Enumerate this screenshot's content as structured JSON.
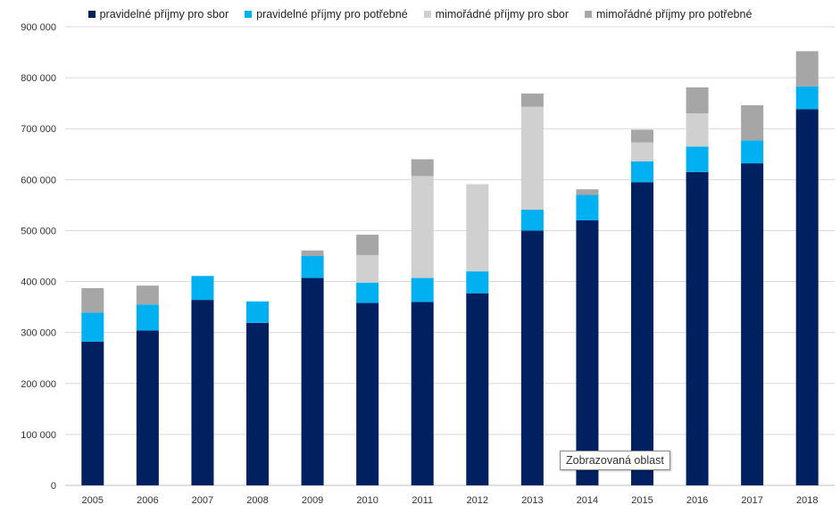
{
  "chart_data": {
    "type": "bar",
    "stacked": true,
    "categories": [
      "2005",
      "2006",
      "2007",
      "2008",
      "2009",
      "2010",
      "2011",
      "2012",
      "2013",
      "2014",
      "2015",
      "2016",
      "2017",
      "2018"
    ],
    "series": [
      {
        "name": "pravidelné příjmy pro sbor",
        "color": "#002060",
        "values": [
          282000,
          304000,
          364000,
          319000,
          407000,
          358000,
          360000,
          377000,
          500000,
          520000,
          595000,
          615000,
          632000,
          738000
        ]
      },
      {
        "name": "pravidelné příjmy pro potřebné",
        "color": "#00B0F0",
        "values": [
          57000,
          51000,
          47000,
          42000,
          43000,
          40000,
          47000,
          43000,
          41000,
          50000,
          41000,
          50000,
          45000,
          45000
        ]
      },
      {
        "name": "mimořádné příjmy pro sbor",
        "color": "#D0D0D0",
        "values": [
          0,
          0,
          0,
          0,
          0,
          54000,
          200000,
          171000,
          202000,
          0,
          37000,
          65000,
          0,
          0
        ]
      },
      {
        "name": "mimořádné příjmy pro potřebné",
        "color": "#A6A6A6",
        "values": [
          48000,
          37000,
          0,
          0,
          11000,
          40000,
          33000,
          0,
          26000,
          11000,
          25000,
          51000,
          69000,
          69000
        ]
      }
    ],
    "ylim": [
      0,
      900000
    ],
    "yticks": [
      0,
      100000,
      200000,
      300000,
      400000,
      500000,
      600000,
      700000,
      800000,
      900000
    ],
    "ytick_labels": [
      "0",
      "100 000",
      "200 000",
      "300 000",
      "400 000",
      "500 000",
      "600 000",
      "700 000",
      "800 000",
      "900 000"
    ],
    "grid": true,
    "legend_position": "top",
    "title": "",
    "xlabel": "",
    "ylabel": ""
  },
  "tooltip": {
    "text": "Zobrazovaná oblast"
  }
}
